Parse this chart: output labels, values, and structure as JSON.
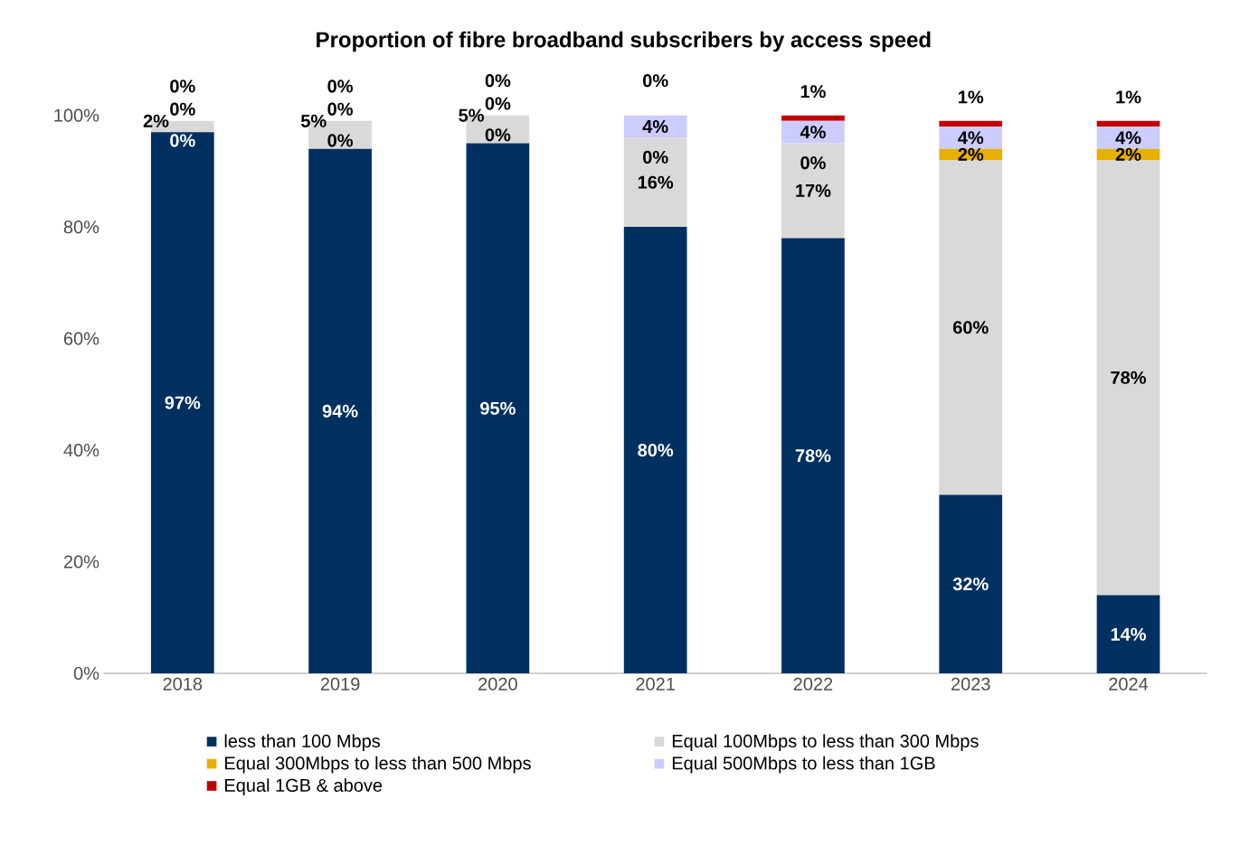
{
  "chart_data": {
    "type": "bar",
    "title": "Proportion of fibre broadband subscribers by access speed",
    "categories": [
      "2018",
      "2019",
      "2020",
      "2021",
      "2022",
      "2023",
      "2024"
    ],
    "stacked": true,
    "series": [
      {
        "name": "less than 100 Mbps",
        "color": "#003060",
        "values": [
          97,
          94,
          95,
          80,
          78,
          32,
          14
        ],
        "value_labels": [
          "97%",
          "94%",
          "95%",
          "80%",
          "78%",
          "32%",
          "14%"
        ]
      },
      {
        "name": "Equal 100Mbps to less than 300 Mbps",
        "color": "#d9d9d9",
        "values": [
          2,
          5,
          5,
          16,
          17,
          60,
          78
        ],
        "value_labels": [
          "2%",
          "5%",
          "5%",
          "16%",
          "17%",
          "60%",
          "78%"
        ]
      },
      {
        "name": "Equal 300Mbps to less than 500 Mbps",
        "color": "#e6b000",
        "values": [
          0,
          0,
          0,
          0,
          0,
          2,
          2
        ],
        "value_labels": [
          "0%",
          "0%",
          "0%",
          "0%",
          "0%",
          "2%",
          "2%"
        ]
      },
      {
        "name": "Equal 500Mbps to less than 1GB",
        "color": "#ccccff",
        "values": [
          0,
          0,
          0,
          4,
          4,
          4,
          4
        ],
        "value_labels": [
          "0%",
          "0%",
          "0%",
          "4%",
          "4%",
          "4%",
          "4%"
        ]
      },
      {
        "name": "Equal 1GB & above",
        "color": "#c00000",
        "values": [
          0,
          0,
          0,
          0,
          1,
          1,
          1
        ],
        "value_labels": [
          "0%",
          "0%",
          "0%",
          "0%",
          "1%",
          "1%",
          "1%"
        ]
      }
    ],
    "ylim": [
      0,
      100
    ],
    "yticks": [
      {
        "value": 0,
        "label": "0%"
      },
      {
        "value": 20,
        "label": "20%"
      },
      {
        "value": 40,
        "label": "40%"
      },
      {
        "value": 60,
        "label": "60%"
      },
      {
        "value": 80,
        "label": "80%"
      },
      {
        "value": 100,
        "label": "100%"
      }
    ],
    "grid": false,
    "legend": "bottom"
  }
}
